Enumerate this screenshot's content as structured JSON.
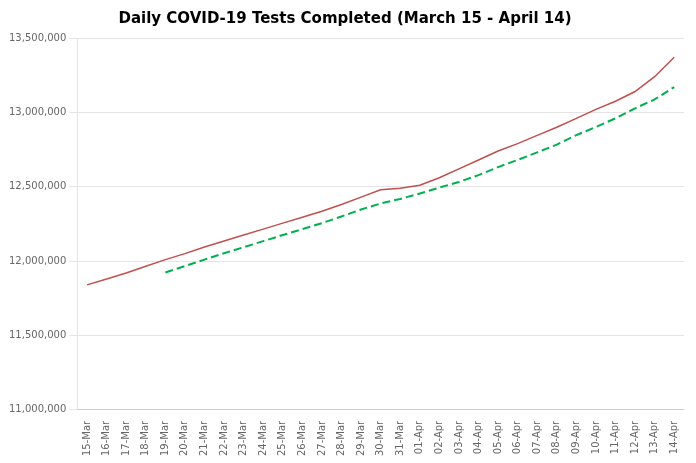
{
  "chart_data": {
    "type": "line",
    "title": "Daily COVID-19 Tests Completed (March 15 - April 14)",
    "categories": [
      "15-Mar",
      "16-Mar",
      "17-Mar",
      "18-Mar",
      "19-Mar",
      "20-Mar",
      "21-Mar",
      "22-Mar",
      "23-Mar",
      "24-Mar",
      "25-Mar",
      "26-Mar",
      "27-Mar",
      "28-Mar",
      "29-Mar",
      "30-Mar",
      "31-Mar",
      "01-Apr",
      "02-Apr",
      "03-Apr",
      "04-Apr",
      "05-Apr",
      "06-Apr",
      "07-Apr",
      "08-Apr",
      "09-Apr",
      "10-Apr",
      "11-Apr",
      "12-Apr",
      "13-Apr",
      "14-Apr"
    ],
    "series": [
      {
        "color": "#c0504d",
        "line_style": "solid",
        "values": [
          11840000,
          11880000,
          11920000,
          11965000,
          12010000,
          12050000,
          12095000,
          12135000,
          12175000,
          12215000,
          12255000,
          12295000,
          12335000,
          12380000,
          12430000,
          12480000,
          12490000,
          12510000,
          12560000,
          12620000,
          12680000,
          12740000,
          12790000,
          12845000,
          12900000,
          12960000,
          13020000,
          13075000,
          13140000,
          13240000,
          13370000
        ]
      },
      {
        "color": "#00b050",
        "line_style": "dashed",
        "values": [
          null,
          null,
          null,
          null,
          11923000,
          11966000,
          12010000,
          12053000,
          12093000,
          12134000,
          12175000,
          12215000,
          12255000,
          12300000,
          12347000,
          12387000,
          12418000,
          12454000,
          12494000,
          12532000,
          12578000,
          12632000,
          12680000,
          12731000,
          12783000,
          12847000,
          12902000,
          12960000,
          13027000,
          13087000,
          13170000
        ]
      }
    ],
    "ylim": [
      11000000,
      13500000
    ],
    "yticks": [
      {
        "value": 11000000,
        "label": "11,000,000"
      },
      {
        "value": 11500000,
        "label": "11,500,000"
      },
      {
        "value": 12000000,
        "label": "12,000,000"
      },
      {
        "value": 12500000,
        "label": "12,500,000"
      },
      {
        "value": 13000000,
        "label": "13,000,000"
      },
      {
        "value": 13500000,
        "label": "13,500,000"
      }
    ],
    "grid": "y"
  }
}
